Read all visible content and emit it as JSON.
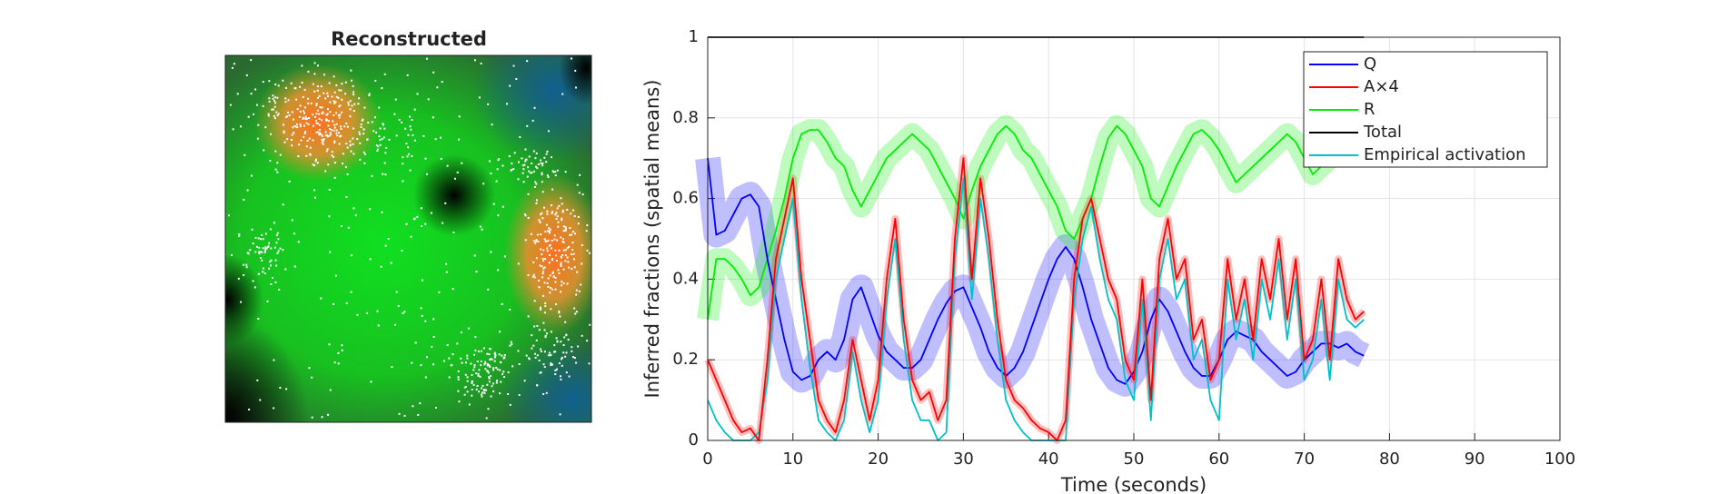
{
  "chart_data": [
    {
      "type": "image",
      "title": "Reconstructed"
    },
    {
      "type": "line",
      "xlabel": "Time (seconds)",
      "ylabel": "Inferred fractions (spatial means)",
      "xlim": [
        0,
        100
      ],
      "xticks": [
        0,
        10,
        20,
        30,
        40,
        50,
        60,
        70,
        80,
        90,
        100
      ],
      "ylim": [
        0,
        1
      ],
      "yticks": [
        0,
        0.2,
        0.4,
        0.6,
        0.8,
        1
      ],
      "grid": true,
      "legend": "upper right",
      "x": [
        0,
        1,
        2,
        3,
        4,
        5,
        6,
        7,
        8,
        9,
        10,
        11,
        12,
        13,
        14,
        15,
        16,
        17,
        18,
        19,
        20,
        21,
        22,
        23,
        24,
        25,
        26,
        27,
        28,
        29,
        30,
        31,
        32,
        33,
        34,
        35,
        36,
        37,
        38,
        39,
        40,
        41,
        42,
        43,
        44,
        45,
        46,
        47,
        48,
        49,
        50,
        51,
        52,
        53,
        54,
        55,
        56,
        57,
        58,
        59,
        60,
        61,
        62,
        63,
        64,
        65,
        66,
        67,
        68,
        69,
        70,
        71,
        72,
        73,
        74,
        75,
        76,
        77
      ],
      "series": [
        {
          "name": "Q",
          "color": "#0000ff",
          "values": [
            0.7,
            0.51,
            0.52,
            0.56,
            0.6,
            0.61,
            0.58,
            0.45,
            0.35,
            0.25,
            0.17,
            0.15,
            0.16,
            0.2,
            0.22,
            0.2,
            0.25,
            0.35,
            0.38,
            0.32,
            0.26,
            0.22,
            0.2,
            0.18,
            0.18,
            0.2,
            0.25,
            0.3,
            0.34,
            0.37,
            0.38,
            0.33,
            0.28,
            0.22,
            0.18,
            0.16,
            0.18,
            0.22,
            0.28,
            0.34,
            0.4,
            0.45,
            0.48,
            0.45,
            0.38,
            0.3,
            0.24,
            0.18,
            0.15,
            0.14,
            0.17,
            0.22,
            0.3,
            0.35,
            0.32,
            0.27,
            0.22,
            0.18,
            0.16,
            0.16,
            0.2,
            0.25,
            0.27,
            0.26,
            0.25,
            0.22,
            0.2,
            0.18,
            0.16,
            0.17,
            0.2,
            0.22,
            0.24,
            0.24,
            0.23,
            0.24,
            0.22,
            0.21
          ]
        },
        {
          "name": "A×4",
          "color": "#ff0000",
          "values": [
            0.2,
            0.15,
            0.1,
            0.05,
            0.02,
            0.03,
            0.0,
            0.2,
            0.45,
            0.55,
            0.65,
            0.4,
            0.25,
            0.1,
            0.05,
            0.02,
            0.1,
            0.25,
            0.15,
            0.05,
            0.15,
            0.4,
            0.55,
            0.3,
            0.15,
            0.1,
            0.12,
            0.05,
            0.1,
            0.5,
            0.7,
            0.4,
            0.65,
            0.5,
            0.3,
            0.15,
            0.1,
            0.08,
            0.05,
            0.03,
            0.02,
            0.0,
            0.05,
            0.4,
            0.55,
            0.6,
            0.5,
            0.4,
            0.35,
            0.2,
            0.15,
            0.4,
            0.1,
            0.45,
            0.55,
            0.4,
            0.45,
            0.25,
            0.3,
            0.15,
            0.2,
            0.45,
            0.3,
            0.4,
            0.25,
            0.45,
            0.35,
            0.5,
            0.3,
            0.45,
            0.2,
            0.25,
            0.4,
            0.2,
            0.45,
            0.35,
            0.3,
            0.32
          ]
        },
        {
          "name": "R",
          "color": "#00ee00",
          "values": [
            0.3,
            0.45,
            0.45,
            0.43,
            0.4,
            0.36,
            0.38,
            0.45,
            0.52,
            0.6,
            0.7,
            0.76,
            0.77,
            0.77,
            0.74,
            0.7,
            0.68,
            0.62,
            0.58,
            0.62,
            0.66,
            0.7,
            0.72,
            0.74,
            0.76,
            0.74,
            0.72,
            0.68,
            0.64,
            0.6,
            0.55,
            0.62,
            0.68,
            0.72,
            0.76,
            0.78,
            0.76,
            0.72,
            0.7,
            0.66,
            0.62,
            0.58,
            0.52,
            0.5,
            0.55,
            0.6,
            0.68,
            0.75,
            0.78,
            0.76,
            0.72,
            0.68,
            0.6,
            0.58,
            0.63,
            0.68,
            0.72,
            0.76,
            0.77,
            0.75,
            0.72,
            0.68,
            0.64,
            0.66,
            0.68,
            0.7,
            0.72,
            0.74,
            0.76,
            0.74,
            0.7,
            0.66,
            0.68,
            0.7,
            0.72,
            0.74,
            0.72,
            0.7
          ]
        },
        {
          "name": "Total",
          "color": "#000000",
          "values": [
            1,
            1,
            1,
            1,
            1,
            1,
            1,
            1,
            1,
            1,
            1,
            1,
            1,
            1,
            1,
            1,
            1,
            1,
            1,
            1,
            1,
            1,
            1,
            1,
            1,
            1,
            1,
            1,
            1,
            1,
            1,
            1,
            1,
            1,
            1,
            1,
            1,
            1,
            1,
            1,
            1,
            1,
            1,
            1,
            1,
            1,
            1,
            1,
            1,
            1,
            1,
            1,
            1,
            1,
            1,
            1,
            1,
            1,
            1,
            1,
            1,
            1,
            1,
            1,
            1,
            1,
            1,
            1,
            1,
            1,
            1,
            1,
            1,
            1,
            1,
            1,
            1,
            1
          ]
        },
        {
          "name": "Empirical activation",
          "color": "#00c0c8",
          "values": [
            0.1,
            0.05,
            0.02,
            0.0,
            0.0,
            0.0,
            0.02,
            0.15,
            0.4,
            0.5,
            0.6,
            0.35,
            0.18,
            0.05,
            0.02,
            0.0,
            0.05,
            0.22,
            0.1,
            0.02,
            0.1,
            0.35,
            0.5,
            0.25,
            0.1,
            0.05,
            0.05,
            0.0,
            0.02,
            0.45,
            0.65,
            0.35,
            0.6,
            0.45,
            0.25,
            0.1,
            0.05,
            0.02,
            0.0,
            0.0,
            0.0,
            0.0,
            0.0,
            0.35,
            0.5,
            0.58,
            0.45,
            0.35,
            0.3,
            0.15,
            0.1,
            0.35,
            0.05,
            0.4,
            0.5,
            0.35,
            0.4,
            0.2,
            0.25,
            0.1,
            0.05,
            0.4,
            0.25,
            0.35,
            0.2,
            0.4,
            0.3,
            0.45,
            0.25,
            0.4,
            0.15,
            0.2,
            0.35,
            0.15,
            0.4,
            0.3,
            0.28,
            0.3
          ]
        }
      ]
    }
  ]
}
